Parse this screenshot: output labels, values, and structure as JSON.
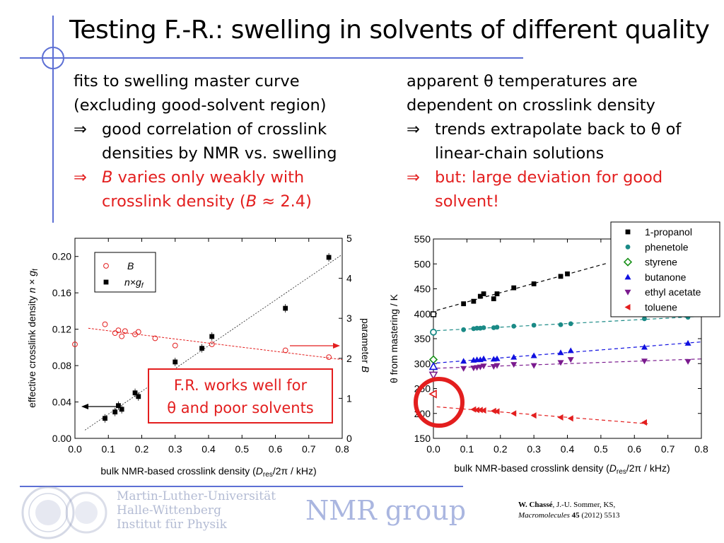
{
  "slide": {
    "title": "Testing F.-R.: swelling in solvents of different quality",
    "left_text": {
      "line1": "fits to swelling master curve",
      "line2": "(excluding good-solvent region)",
      "bullet1": [
        "good correlation of crosslink",
        "densities by NMR vs. swelling"
      ],
      "bullet2_a": "varies only weakly with",
      "bullet2_b": "crosslink density (",
      "bullet2_c": " ≈ 2.4)",
      "b_symbol": "B"
    },
    "right_text": {
      "line1": "apparent θ temperatures are",
      "line2": "dependent on crosslink density",
      "bullet1": [
        "trends extrapolate back to θ of",
        "linear-chain solutions"
      ],
      "bullet2": [
        "but: large deviation for good",
        "solvent!"
      ]
    },
    "arrow_symbol": "⇒",
    "callout": [
      "F.R. works well for",
      "θ and poor solvents"
    ],
    "footer": {
      "university": [
        "Martin-Luther-Universität",
        "Halle-Wittenberg",
        "Institut für Physik"
      ],
      "group": "NMR group",
      "reference_author": "W. Chassé",
      "reference_rest": ", J.-U. Sommer, KS,",
      "reference_journal": "Macromolecules",
      "reference_volume": "45",
      "reference_year_page": " (2012) 5513"
    }
  },
  "colors": {
    "accent_blue": "#5c6fd4",
    "red": "#e31e1e"
  },
  "chart_data": [
    {
      "type": "scatter",
      "xlabel": "bulk NMR-based crosslink density (D_res/2π / kHz)",
      "ylabel_left": "effective crosslink density n × g_f",
      "ylabel_right": "parameter B",
      "xlim": [
        0.0,
        0.8
      ],
      "ylim_left": [
        0.0,
        0.22
      ],
      "ylim_right": [
        0,
        5
      ],
      "xticks": [
        "0.0",
        "0.1",
        "0.2",
        "0.3",
        "0.4",
        "0.5",
        "0.6",
        "0.7",
        "0.8"
      ],
      "yticks_left": [
        "0.00",
        "0.04",
        "0.08",
        "0.12",
        "0.16",
        "0.20"
      ],
      "yticks_right": [
        "0",
        "1",
        "2",
        "3",
        "4",
        "5"
      ],
      "legend": [
        "B",
        "n×g_f"
      ],
      "legend_position": "top-left",
      "series": [
        {
          "name": "B",
          "axis": "right",
          "marker": "open-circle",
          "color": "#e31e1e",
          "x": [
            0.0,
            0.09,
            0.12,
            0.13,
            0.14,
            0.15,
            0.18,
            0.19,
            0.24,
            0.3,
            0.41,
            0.63,
            0.76
          ],
          "y": [
            2.35,
            2.85,
            2.63,
            2.7,
            2.55,
            2.68,
            2.6,
            2.66,
            2.5,
            2.32,
            2.35,
            2.2,
            2.03
          ]
        },
        {
          "name": "n×g_f",
          "axis": "left",
          "marker": "filled-square",
          "color": "#000000",
          "x": [
            0.09,
            0.12,
            0.13,
            0.14,
            0.18,
            0.19,
            0.3,
            0.38,
            0.41,
            0.63,
            0.76
          ],
          "y": [
            0.022,
            0.029,
            0.036,
            0.032,
            0.05,
            0.046,
            0.084,
            0.099,
            0.112,
            0.143,
            0.199
          ]
        }
      ]
    },
    {
      "type": "scatter",
      "xlabel": "bulk NMR-based crosslink density (D_res/2π / kHz)",
      "ylabel": "θ from mastering / K",
      "xlim": [
        0.0,
        0.8
      ],
      "ylim": [
        150,
        550
      ],
      "xticks": [
        "0.0",
        "0.1",
        "0.2",
        "0.3",
        "0.4",
        "0.5",
        "0.6",
        "0.7",
        "0.8"
      ],
      "yticks": [
        "150",
        "200",
        "250",
        "300",
        "350",
        "400",
        "450",
        "500",
        "550"
      ],
      "legend_position": "top-right",
      "series": [
        {
          "name": "1-propanol",
          "marker": "filled-square",
          "color": "#000000",
          "x": [
            0.09,
            0.12,
            0.14,
            0.15,
            0.18,
            0.19,
            0.24,
            0.3,
            0.38,
            0.4
          ],
          "y": [
            420,
            425,
            435,
            440,
            430,
            440,
            452,
            460,
            475,
            480
          ],
          "theta_open": 399
        },
        {
          "name": "phenetole",
          "marker": "filled-circle",
          "color": "#1a8a86",
          "x": [
            0.09,
            0.12,
            0.13,
            0.14,
            0.15,
            0.18,
            0.19,
            0.24,
            0.3,
            0.38,
            0.41,
            0.63,
            0.76
          ],
          "y": [
            368,
            370,
            371,
            371,
            372,
            372,
            373,
            375,
            377,
            378,
            380,
            390,
            393
          ],
          "theta_open": 363
        },
        {
          "name": "styrene",
          "marker": "open-diamond",
          "color": "#179017",
          "x": [],
          "y": [],
          "theta_open": 308
        },
        {
          "name": "butanone",
          "marker": "filled-triangle-up",
          "color": "#1010e0",
          "x": [
            0.09,
            0.12,
            0.13,
            0.14,
            0.15,
            0.18,
            0.19,
            0.24,
            0.3,
            0.38,
            0.41,
            0.63,
            0.76
          ],
          "y": [
            305,
            307,
            308,
            308,
            310,
            309,
            310,
            313,
            316,
            322,
            326,
            333,
            341
          ],
          "theta_open": 294
        },
        {
          "name": "ethyl acetate",
          "marker": "filled-triangle-down",
          "color": "#7a1a8e",
          "x": [
            0.09,
            0.12,
            0.13,
            0.14,
            0.15,
            0.18,
            0.19,
            0.24,
            0.3,
            0.38,
            0.41,
            0.63,
            0.76
          ],
          "y": [
            290,
            291,
            292,
            293,
            295,
            294,
            296,
            298,
            296,
            302,
            308,
            305,
            304
          ],
          "theta_open": 277
        },
        {
          "name": "toluene",
          "marker": "filled-triangle-left",
          "color": "#e31e1e",
          "x": [
            0.12,
            0.13,
            0.14,
            0.15,
            0.18,
            0.19,
            0.24,
            0.3,
            0.38,
            0.41,
            0.63
          ],
          "y": [
            208,
            207,
            207,
            206,
            205,
            204,
            200,
            196,
            192,
            190,
            182
          ],
          "theta_open": 239
        }
      ]
    }
  ]
}
